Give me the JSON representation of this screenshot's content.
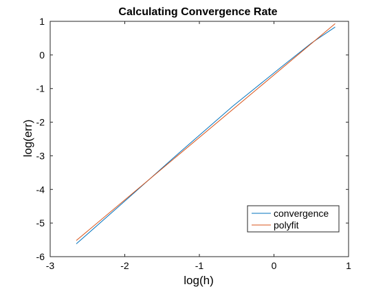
{
  "chart_data": {
    "type": "line",
    "title": "Calculating Convergence Rate",
    "xlabel": "log(h)",
    "ylabel": "log(err)",
    "xlim": [
      -3,
      1
    ],
    "ylim": [
      -6,
      1
    ],
    "xticks": [
      -3,
      -2,
      -1,
      0,
      1
    ],
    "yticks": [
      -6,
      -5,
      -4,
      -3,
      -2,
      -1,
      0,
      1
    ],
    "grid": false,
    "legend_position": "bottom-right",
    "series": [
      {
        "name": "convergence",
        "color": "#0072BD",
        "x": [
          -2.65,
          -1.95,
          -1.25,
          -0.55,
          0.12,
          0.5,
          0.82
        ],
        "y": [
          -5.62,
          -4.25,
          -2.87,
          -1.52,
          -0.32,
          0.35,
          0.83
        ]
      },
      {
        "name": "polyfit",
        "color": "#D95319",
        "x": [
          -2.65,
          0.82
        ],
        "y": [
          -5.52,
          0.93
        ]
      }
    ]
  }
}
